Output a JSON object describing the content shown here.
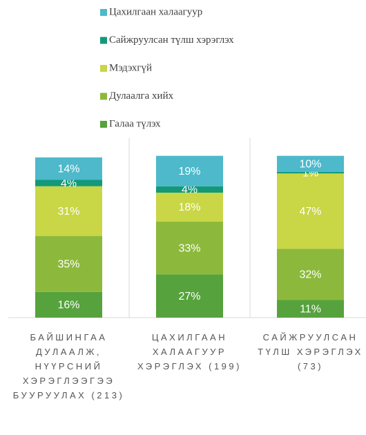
{
  "chart_data": {
    "type": "stacked_bar_100",
    "categories": [
      "БАЙШИНГАА ДУЛААЛЖ, НҮҮРСНИЙ ХЭРЭГЛЭЭГЭЭ БУУРУУЛАХ (213)",
      "ЦАХИЛГААН ХАЛААГУУР ХЭРЭГЛЭХ (199)",
      "САЙЖРУУЛСАН ТҮЛШ ХЭРЭГЛЭХ (73)"
    ],
    "series": [
      {
        "name": "Галаа түлэх",
        "color": "#56a23c",
        "values": [
          16,
          27,
          11
        ],
        "value_labels": [
          "16%",
          "27%",
          "11%"
        ]
      },
      {
        "name": "Дулаалга хийх",
        "color": "#8cb93c",
        "values": [
          35,
          33,
          32
        ],
        "value_labels": [
          "35%",
          "33%",
          "32%"
        ]
      },
      {
        "name": "Мэдэхгүй",
        "color": "#c9d645",
        "values": [
          31,
          18,
          47
        ],
        "value_labels": [
          "31%",
          "18%",
          "47%"
        ]
      },
      {
        "name": "Сайжруулсан түлш хэрэглэх",
        "color": "#13997a",
        "values": [
          4,
          4,
          1
        ],
        "value_labels": [
          "4%",
          "4%",
          "1%"
        ]
      },
      {
        "name": "Цахилгаан халаагуур",
        "color": "#4db9cb",
        "values": [
          14,
          19,
          10
        ],
        "value_labels": [
          "14%",
          "19%",
          "10%"
        ]
      }
    ],
    "ylim": [
      0,
      100
    ]
  }
}
